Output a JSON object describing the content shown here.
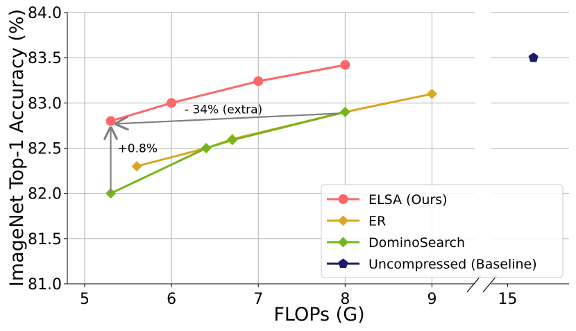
{
  "chart_data": {
    "type": "line",
    "xlabel": "FLOPs (G)",
    "ylabel": "ImageNet Top-1 Accuracy (%)",
    "ylim": [
      81.0,
      84.0
    ],
    "xlim_main": [
      4.8,
      9.5
    ],
    "xlim_break": [
      14.75,
      15.95
    ],
    "x_ticks_main": [
      "5",
      "6",
      "7",
      "8",
      "9"
    ],
    "x_ticks_break": [
      "15"
    ],
    "y_ticks": [
      "81.0",
      "81.5",
      "82.0",
      "82.5",
      "83.0",
      "83.5",
      "84.0"
    ],
    "axis_break": true,
    "grid": true,
    "legend_position": "lower-right",
    "series": [
      {
        "name": "ELSA (Ours)",
        "color": "#ff6666",
        "marker": "circle",
        "x": [
          5.3,
          6.0,
          7.0,
          8.0
        ],
        "y": [
          82.8,
          83.0,
          83.24,
          83.42
        ]
      },
      {
        "name": "ER",
        "color": "#daa520",
        "marker": "diamond",
        "x": [
          5.6,
          6.4,
          6.7,
          8.0,
          9.0
        ],
        "y": [
          82.3,
          82.5,
          82.6,
          82.9,
          83.1
        ]
      },
      {
        "name": "DominoSearch",
        "color": "#77b41a",
        "marker": "diamond",
        "x": [
          5.3,
          6.4,
          6.7,
          8.0
        ],
        "y": [
          82.0,
          82.5,
          82.59,
          82.9
        ]
      },
      {
        "name": "Uncompressed (Baseline)",
        "color": "#1b1b6b",
        "marker": "pentagon",
        "x": [
          15.4
        ],
        "y": [
          83.5
        ]
      }
    ],
    "annotations": [
      {
        "text": "+0.8%",
        "x": 5.38,
        "y": 82.5
      },
      {
        "text": "- 34% (extra)",
        "x": 6.15,
        "y": 82.93
      }
    ]
  }
}
